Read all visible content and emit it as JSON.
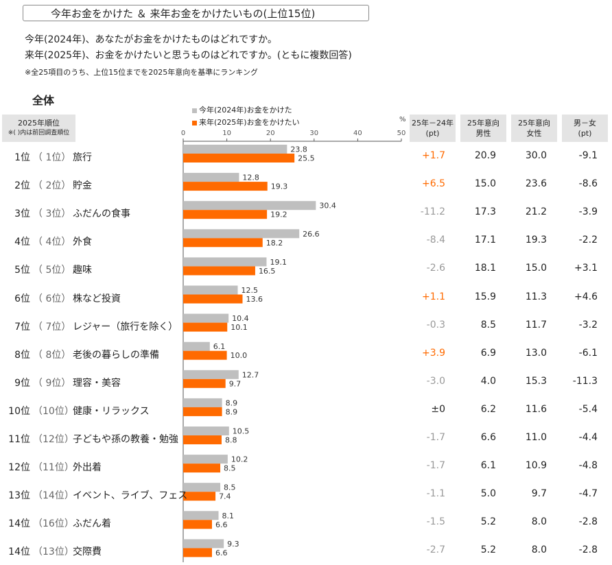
{
  "title": "今年お金をかけた ＆ 来年お金をかけたいもの(上位15位)",
  "question_line1": "今年(2024年)、あなたがお金をかけたものはどれですか。",
  "question_line2": "来年(2025年)、お金をかけたいと思うものはどれですか。(ともに複数回答)",
  "note": "※全25項目のうち、上位15位までを2025年意向を基準にランキング",
  "section_label": "全体",
  "rank_header": "2025年順位",
  "rank_subheader": "※(  )内は前回調査順位",
  "legend": [
    {
      "label": "今年(2024年)お金をかけた",
      "color": "#bfbfbf"
    },
    {
      "label": "来年(2025年)お金をかけたい",
      "color": "#ff6a00"
    }
  ],
  "pct_unit": "%",
  "col_headers": [
    {
      "line1": "25年－24年",
      "line2": "(pt)"
    },
    {
      "line1": "25年意向",
      "line2": "男性"
    },
    {
      "line1": "25年意向",
      "line2": "女性"
    },
    {
      "line1": "男－女",
      "line2": "(pt)"
    }
  ],
  "colors": {
    "gray": "#bfbfbf",
    "orange": "#ff6a00",
    "diff_positive": "#ff6a00",
    "diff_negative": "#999999",
    "diff_zero": "#222222"
  },
  "chart_data": {
    "type": "bar",
    "orientation": "horizontal",
    "categories": [
      "旅行",
      "貯金",
      "ふだんの食事",
      "外食",
      "趣味",
      "株など投資",
      "レジャー（旅行を除く）",
      "老後の暮らしの準備",
      "理容・美容",
      "健康・リラックス",
      "子どもや孫の教養・勉強",
      "外出着",
      "イベント、ライブ、フェス",
      "ふだん着",
      "交際費"
    ],
    "xlim": [
      0,
      50
    ],
    "xticks": [
      "0",
      "10",
      "20",
      "30",
      "40",
      "50"
    ],
    "series": [
      {
        "name": "今年(2024年)お金をかけた",
        "values": [
          23.8,
          12.8,
          30.4,
          26.6,
          19.1,
          12.5,
          10.4,
          6.1,
          12.7,
          8.9,
          10.5,
          10.2,
          8.5,
          8.1,
          9.3
        ]
      },
      {
        "name": "来年(2025年)お金をかけたい",
        "values": [
          25.5,
          19.3,
          19.2,
          18.2,
          16.5,
          13.6,
          10.1,
          10.0,
          9.7,
          8.9,
          8.8,
          8.5,
          7.4,
          6.6,
          6.6
        ]
      }
    ]
  },
  "rows": [
    {
      "rank": "1位",
      "prev": "（ 1位）",
      "item": "旅行",
      "diff": "+1.7",
      "male": "20.9",
      "female": "30.0",
      "mf": "-9.1"
    },
    {
      "rank": "2位",
      "prev": "（ 2位）",
      "item": "貯金",
      "diff": "+6.5",
      "male": "15.0",
      "female": "23.6",
      "mf": "-8.6"
    },
    {
      "rank": "3位",
      "prev": "（ 3位）",
      "item": "ふだんの食事",
      "diff": "-11.2",
      "male": "17.3",
      "female": "21.2",
      "mf": "-3.9"
    },
    {
      "rank": "4位",
      "prev": "（ 4位）",
      "item": "外食",
      "diff": "-8.4",
      "male": "17.1",
      "female": "19.3",
      "mf": "-2.2"
    },
    {
      "rank": "5位",
      "prev": "（ 5位）",
      "item": "趣味",
      "diff": "-2.6",
      "male": "18.1",
      "female": "15.0",
      "mf": "+3.1"
    },
    {
      "rank": "6位",
      "prev": "（ 6位）",
      "item": "株など投資",
      "diff": "+1.1",
      "male": "15.9",
      "female": "11.3",
      "mf": "+4.6"
    },
    {
      "rank": "7位",
      "prev": "（ 7位）",
      "item": "レジャー（旅行を除く）",
      "diff": "-0.3",
      "male": "8.5",
      "female": "11.7",
      "mf": "-3.2"
    },
    {
      "rank": "8位",
      "prev": "（ 8位）",
      "item": "老後の暮らしの準備",
      "diff": "+3.9",
      "male": "6.9",
      "female": "13.0",
      "mf": "-6.1"
    },
    {
      "rank": "9位",
      "prev": "（ 9位）",
      "item": "理容・美容",
      "diff": "-3.0",
      "male": "4.0",
      "female": "15.3",
      "mf": "-11.3"
    },
    {
      "rank": "10位",
      "prev": "（10位）",
      "item": "健康・リラックス",
      "diff": "±0",
      "male": "6.2",
      "female": "11.6",
      "mf": "-5.4"
    },
    {
      "rank": "11位",
      "prev": "（12位）",
      "item": "子どもや孫の教養・勉強",
      "diff": "-1.7",
      "male": "6.6",
      "female": "11.0",
      "mf": "-4.4"
    },
    {
      "rank": "12位",
      "prev": "（11位）",
      "item": "外出着",
      "diff": "-1.7",
      "male": "6.1",
      "female": "10.9",
      "mf": "-4.8"
    },
    {
      "rank": "13位",
      "prev": "（14位）",
      "item": "イベント、ライブ、フェス",
      "diff": "-1.1",
      "male": "5.0",
      "female": "9.7",
      "mf": "-4.7"
    },
    {
      "rank": "14位",
      "prev": "（16位）",
      "item": "ふだん着",
      "diff": "-1.5",
      "male": "5.2",
      "female": "8.0",
      "mf": "-2.8"
    },
    {
      "rank": "14位",
      "prev": "（13位）",
      "item": "交際費",
      "diff": "-2.7",
      "male": "5.2",
      "female": "8.0",
      "mf": "-2.8"
    }
  ]
}
